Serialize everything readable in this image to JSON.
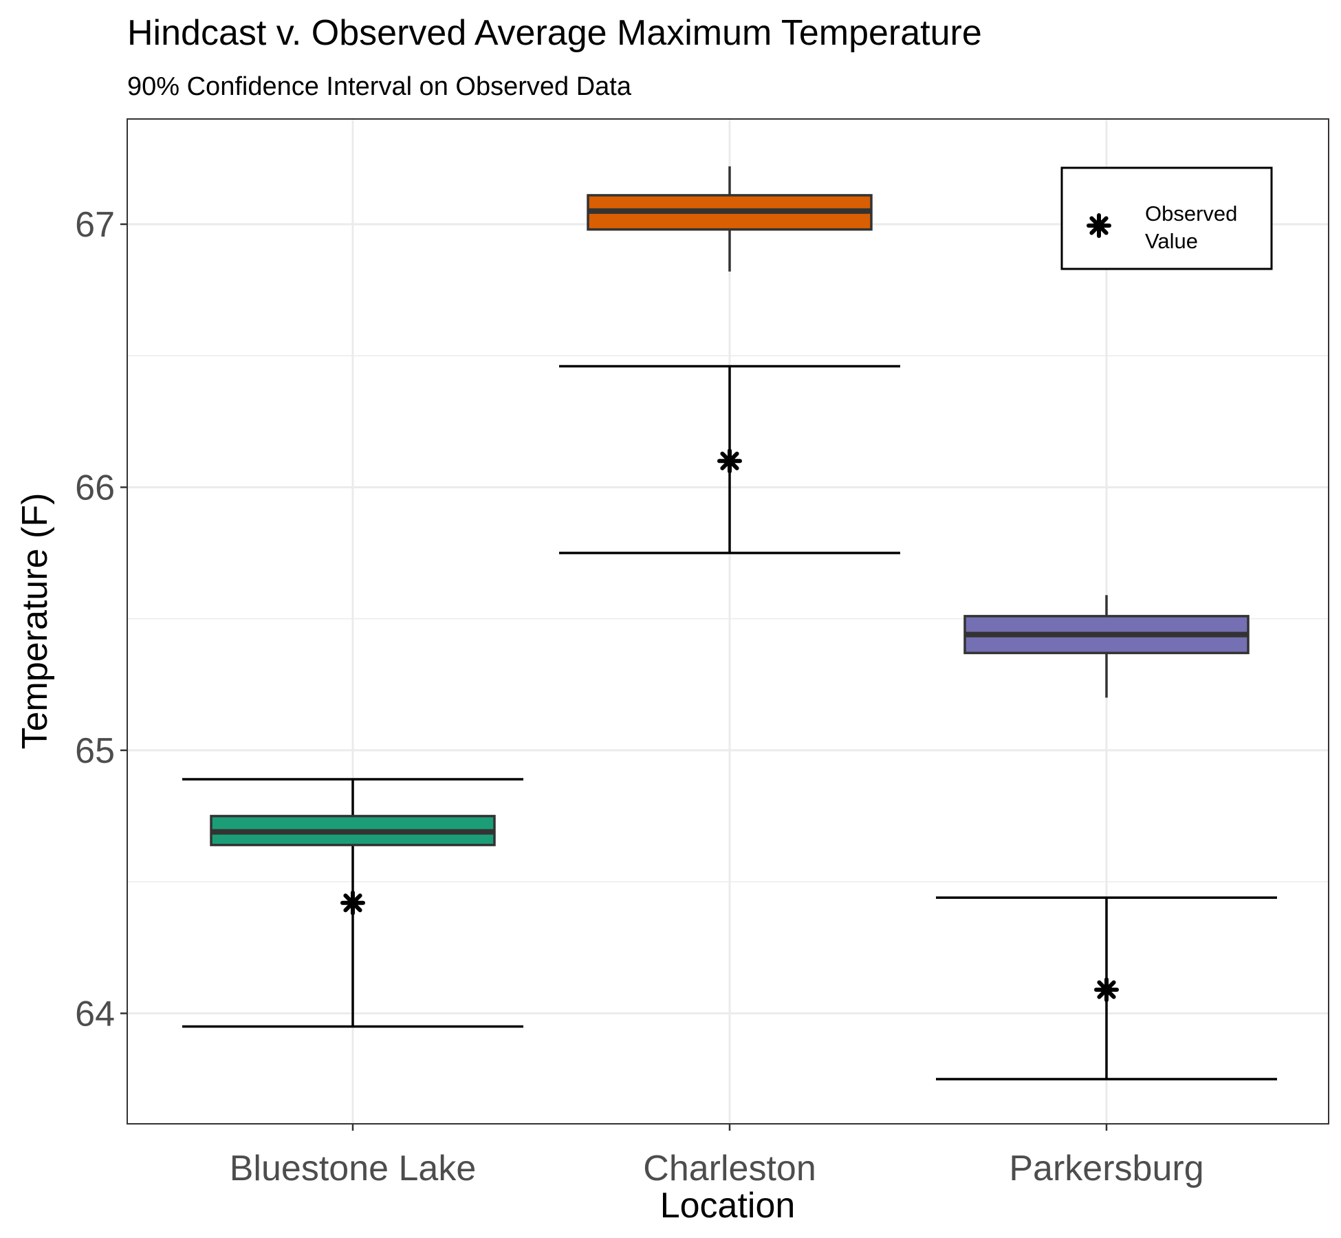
{
  "chart_data": {
    "type": "box",
    "title": "Hindcast v. Observed Average Maximum Temperature",
    "subtitle": "90% Confidence Interval on Observed Data",
    "xlabel": "Location",
    "ylabel": "Temperature (F)",
    "ylim": [
      63.58,
      67.4
    ],
    "yticks": [
      64,
      65,
      66,
      67
    ],
    "categories": [
      "Bluestone Lake",
      "Charleston",
      "Parkersburg"
    ],
    "boxes": [
      {
        "category": "Bluestone Lake",
        "whisker_low": 64.64,
        "q1": 64.64,
        "median": 64.69,
        "q3": 64.75,
        "whisker_high": 64.75,
        "color": "#1b9e77"
      },
      {
        "category": "Charleston",
        "whisker_low": 66.82,
        "q1": 66.98,
        "median": 67.05,
        "q3": 67.11,
        "whisker_high": 67.22,
        "color": "#d95f02"
      },
      {
        "category": "Parkersburg",
        "whisker_low": 65.2,
        "q1": 65.37,
        "median": 65.44,
        "q3": 65.51,
        "whisker_high": 65.59,
        "color": "#7570b3"
      }
    ],
    "observed": [
      {
        "category": "Bluestone Lake",
        "value": 64.42,
        "ci_low": 63.95,
        "ci_high": 64.89
      },
      {
        "category": "Charleston",
        "value": 66.1,
        "ci_low": 65.75,
        "ci_high": 66.46
      },
      {
        "category": "Parkersburg",
        "value": 64.09,
        "ci_low": 63.75,
        "ci_high": 64.44
      }
    ],
    "grid": true,
    "legend": {
      "placement": "top-right",
      "label_line1": "Observed",
      "label_line2": "Value"
    }
  }
}
